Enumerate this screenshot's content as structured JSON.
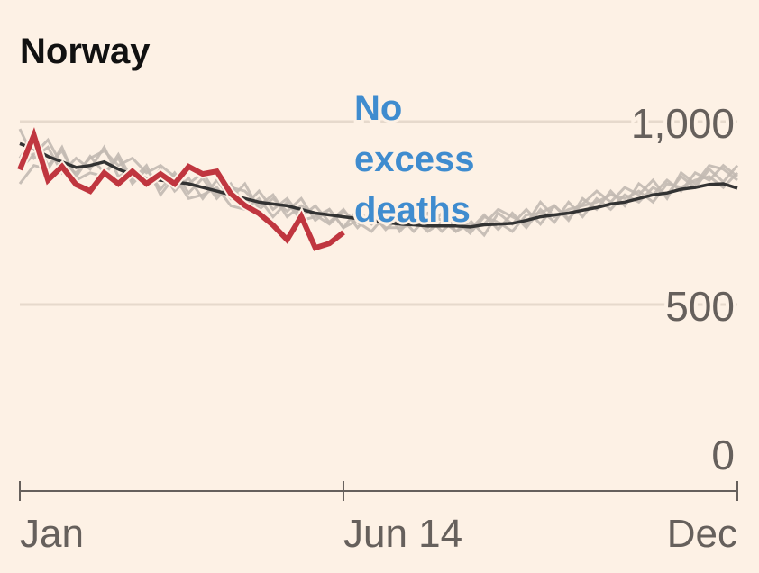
{
  "chart_data": {
    "type": "line",
    "title": "Norway",
    "annotation": [
      "No",
      "excess",
      "deaths"
    ],
    "xlabel": "",
    "ylabel": "",
    "x_unit": "week of year",
    "xlim": [
      1,
      52
    ],
    "ylim": [
      0,
      1000
    ],
    "yticks": [
      {
        "value": 0,
        "label": "0"
      },
      {
        "value": 500,
        "label": "500"
      },
      {
        "value": 1000,
        "label": "1,000"
      }
    ],
    "xticks": [
      {
        "value": 1,
        "label": "Jan"
      },
      {
        "value": 24,
        "label": "Jun 14"
      },
      {
        "value": 52,
        "label": "Dec"
      }
    ],
    "grid": true,
    "colors": {
      "current": "#c0363f",
      "mean": "#333333",
      "past": "#c2b9b1",
      "annotation": "#3f8ccf",
      "background": "#fdf1e5"
    },
    "series": [
      {
        "name": "past-year-1",
        "role": "past",
        "values": [
          980,
          900,
          930,
          860,
          900,
          870,
          930,
          850,
          870,
          830,
          870,
          810,
          845,
          790,
          840,
          790,
          830,
          760,
          790,
          755,
          790,
          730,
          760,
          710,
          760,
          720,
          765,
          700,
          740,
          710,
          750,
          700,
          730,
          690,
          750,
          720,
          760,
          720,
          770,
          730,
          790,
          760,
          810,
          770,
          830,
          800,
          840,
          810,
          860,
          840,
          880,
          850
        ]
      },
      {
        "name": "past-year-2",
        "role": "past",
        "values": [
          900,
          960,
          880,
          920,
          850,
          905,
          860,
          900,
          830,
          870,
          815,
          860,
          805,
          845,
          790,
          830,
          770,
          810,
          760,
          790,
          740,
          770,
          725,
          760,
          710,
          750,
          705,
          740,
          700,
          740,
          700,
          735,
          705,
          745,
          705,
          750,
          710,
          760,
          725,
          780,
          740,
          790,
          760,
          800,
          780,
          820,
          800,
          850,
          820,
          870,
          835,
          880
        ]
      },
      {
        "name": "past-year-3",
        "role": "past",
        "values": [
          870,
          910,
          950,
          880,
          860,
          900,
          920,
          880,
          900,
          860,
          880,
          850,
          830,
          860,
          800,
          820,
          810,
          770,
          800,
          740,
          770,
          745,
          720,
          755,
          725,
          700,
          745,
          720,
          735,
          700,
          725,
          730,
          695,
          740,
          725,
          700,
          745,
          750,
          770,
          735,
          775,
          810,
          780,
          820,
          800,
          840,
          790,
          860,
          830,
          880,
          870,
          840
        ]
      },
      {
        "name": "past-year-4",
        "role": "past",
        "values": [
          830,
          880,
          870,
          930,
          840,
          860,
          850,
          910,
          840,
          880,
          800,
          850,
          790,
          800,
          820,
          770,
          760,
          790,
          740,
          780,
          730,
          740,
          760,
          710,
          730,
          740,
          710,
          710,
          720,
          750,
          730,
          700,
          720,
          720,
          760,
          740,
          720,
          780,
          740,
          760,
          770,
          780,
          800,
          790,
          810,
          780,
          830,
          820,
          840,
          850,
          820,
          860
        ]
      },
      {
        "name": "average",
        "role": "mean",
        "values": [
          940,
          925,
          905,
          890,
          875,
          880,
          890,
          870,
          855,
          845,
          840,
          835,
          830,
          820,
          810,
          800,
          790,
          780,
          775,
          770,
          760,
          750,
          745,
          740,
          735,
          730,
          725,
          720,
          718,
          715,
          715,
          715,
          712,
          718,
          720,
          722,
          730,
          740,
          745,
          750,
          758,
          765,
          775,
          780,
          790,
          800,
          805,
          815,
          820,
          828,
          830,
          818
        ]
      },
      {
        "name": "2020",
        "role": "current",
        "values": [
          869,
          963,
          840,
          877,
          828,
          810,
          860,
          830,
          864,
          830,
          857,
          830,
          877,
          857,
          864,
          803,
          771,
          749,
          717,
          677,
          741,
          655,
          667,
          697
        ]
      }
    ]
  }
}
